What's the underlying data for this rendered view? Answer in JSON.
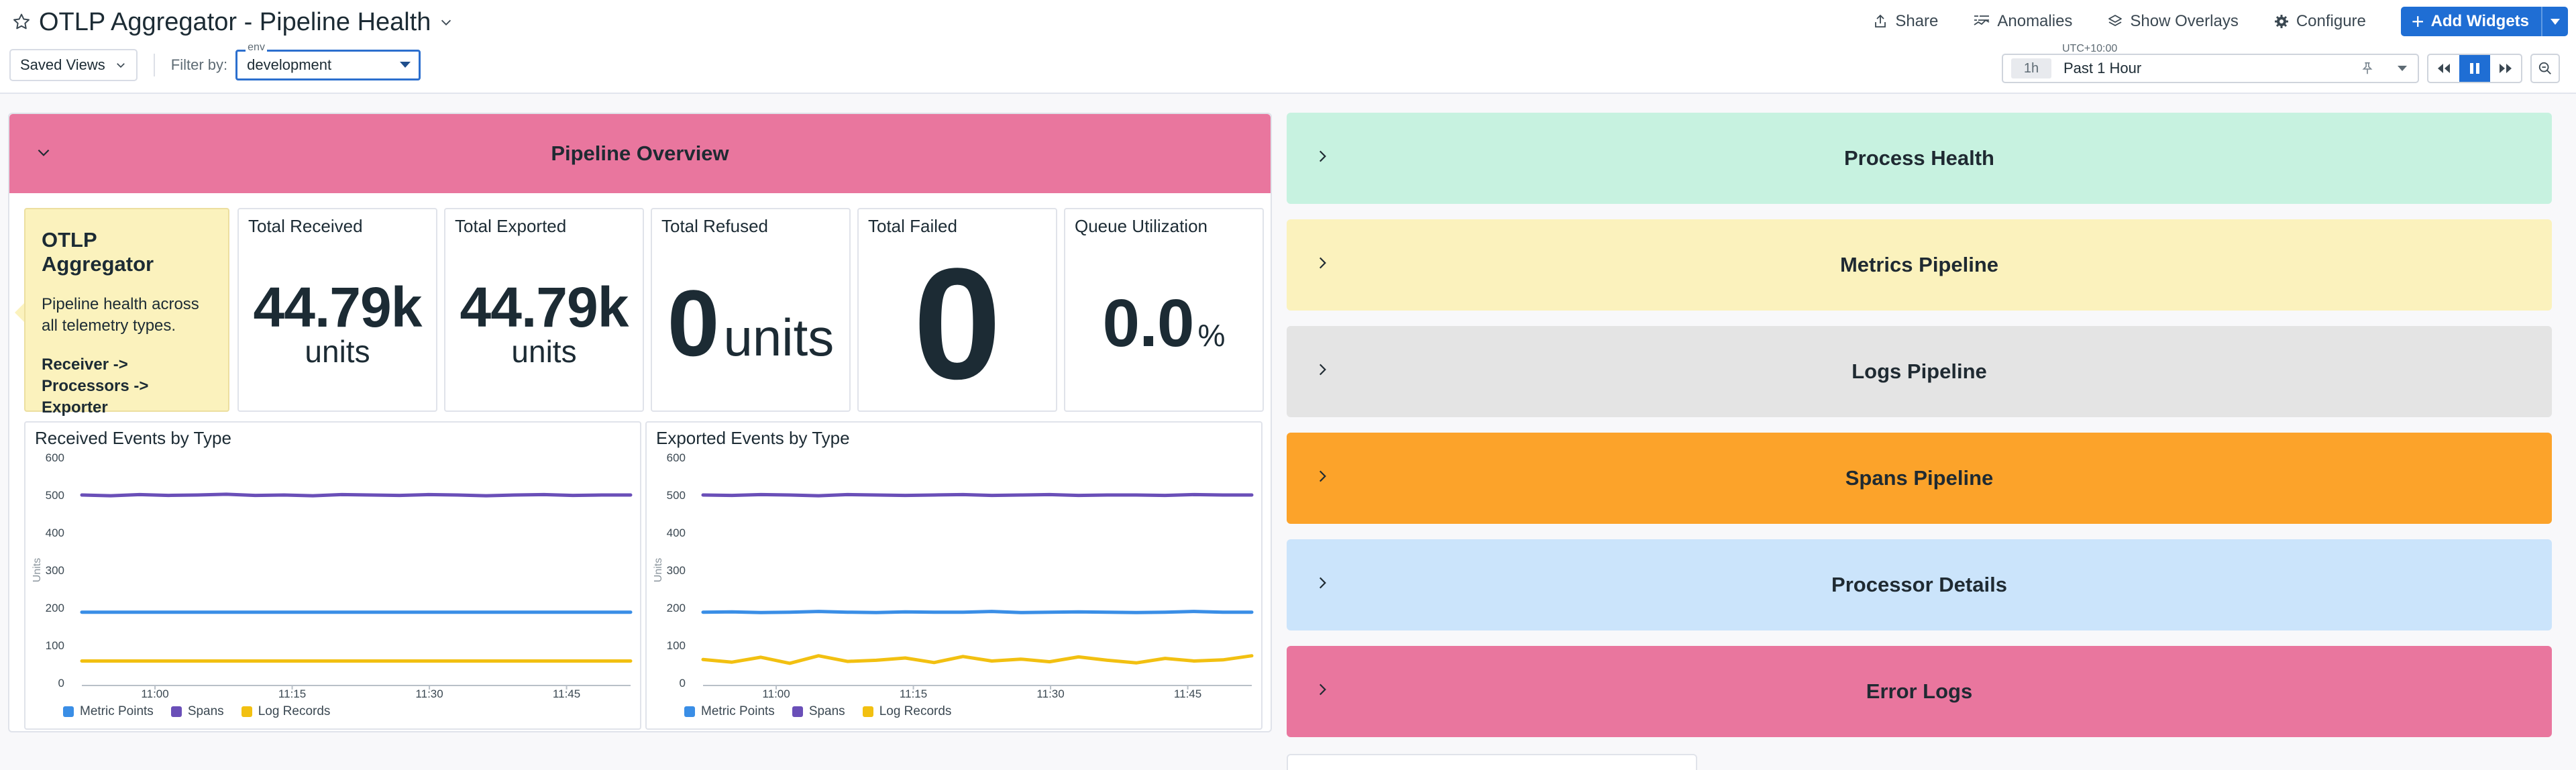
{
  "header": {
    "title": "OTLP Aggregator - Pipeline Health",
    "actions": {
      "share": "Share",
      "anomalies": "Anomalies",
      "show_overlays": "Show Overlays",
      "configure": "Configure",
      "add_widgets": "Add Widgets"
    },
    "saved_views": "Saved Views",
    "filter_label": "Filter by:",
    "env_tag": "env",
    "env_value": "development",
    "timezone": "UTC+10:00",
    "range_tag": "1h",
    "range_text": "Past 1 Hour"
  },
  "overview": {
    "title": "Pipeline Overview",
    "note": {
      "title": "OTLP Aggregator",
      "body": "Pipeline health across all telemetry types.",
      "flow": [
        "Receiver ->",
        "Processors ->",
        "Exporter"
      ]
    },
    "query_values": [
      {
        "title": "Total Received",
        "value": "44.79k",
        "unit": "units"
      },
      {
        "title": "Total Exported",
        "value": "44.79k",
        "unit": "units"
      },
      {
        "title": "Total Refused",
        "value": "0",
        "unit": "units"
      },
      {
        "title": "Total Failed",
        "value": "0"
      },
      {
        "title": "Queue Utilization",
        "value": "0.0",
        "unit": "%"
      }
    ]
  },
  "groups": [
    {
      "title": "Process Health",
      "color": "#c7f2e0"
    },
    {
      "title": "Metrics Pipeline",
      "color": "#fbf2bd"
    },
    {
      "title": "Logs Pipeline",
      "color": "#e4e4e4"
    },
    {
      "title": "Spans Pipeline",
      "color": "#fca32a"
    },
    {
      "title": "Processor Details",
      "color": "#cbe4fb"
    },
    {
      "title": "Error Logs",
      "color": "#e9769e"
    }
  ],
  "chart_data": [
    {
      "type": "line",
      "title": "Received Events by Type",
      "ylabel": "Units",
      "xlabel": "",
      "ylim": [
        0,
        600
      ],
      "yticks": [
        0,
        100,
        200,
        300,
        400,
        500,
        600
      ],
      "xticks": [
        "11:00",
        "11:15",
        "11:30",
        "11:45"
      ],
      "xtick_minutes": [
        60,
        75,
        90,
        105
      ],
      "xrange_minutes": [
        52,
        112
      ],
      "series": [
        {
          "name": "Metric Points",
          "color": "#3a8ee6",
          "values": [
            188,
            188,
            188,
            188,
            188,
            188,
            188,
            188,
            188,
            188,
            188,
            188,
            188,
            188,
            188,
            188,
            188,
            188,
            188,
            188
          ]
        },
        {
          "name": "Spans",
          "color": "#6a4fb8",
          "values": [
            500,
            498,
            501,
            499,
            500,
            502,
            499,
            500,
            498,
            501,
            500,
            499,
            501,
            500,
            498,
            500,
            501,
            499,
            500,
            500
          ]
        },
        {
          "name": "Log Records",
          "color": "#f2c011",
          "values": [
            58,
            58,
            58,
            58,
            58,
            58,
            58,
            58,
            58,
            58,
            58,
            58,
            58,
            58,
            58,
            58,
            58,
            58,
            58,
            58
          ]
        }
      ],
      "legend": "bottom-left",
      "grid": false
    },
    {
      "type": "line",
      "title": "Exported Events by Type",
      "ylabel": "Units",
      "xlabel": "",
      "ylim": [
        0,
        600
      ],
      "yticks": [
        0,
        100,
        200,
        300,
        400,
        500,
        600
      ],
      "xticks": [
        "11:00",
        "11:15",
        "11:30",
        "11:45"
      ],
      "xtick_minutes": [
        60,
        75,
        90,
        105
      ],
      "xrange_minutes": [
        52,
        112
      ],
      "series": [
        {
          "name": "Metric Points",
          "color": "#3a8ee6",
          "values": [
            188,
            189,
            187,
            188,
            190,
            188,
            187,
            189,
            188,
            188,
            190,
            187,
            188,
            189,
            188,
            187,
            188,
            190,
            188,
            188
          ]
        },
        {
          "name": "Spans",
          "color": "#6a4fb8",
          "values": [
            500,
            499,
            501,
            500,
            498,
            501,
            500,
            499,
            500,
            501,
            499,
            500,
            501,
            499,
            500,
            500,
            499,
            501,
            500,
            500
          ]
        },
        {
          "name": "Log Records",
          "color": "#f2c011",
          "values": [
            62,
            55,
            68,
            52,
            72,
            57,
            60,
            66,
            54,
            70,
            58,
            63,
            56,
            69,
            60,
            53,
            65,
            58,
            61,
            72
          ]
        }
      ],
      "legend": "bottom-left",
      "grid": false
    }
  ]
}
